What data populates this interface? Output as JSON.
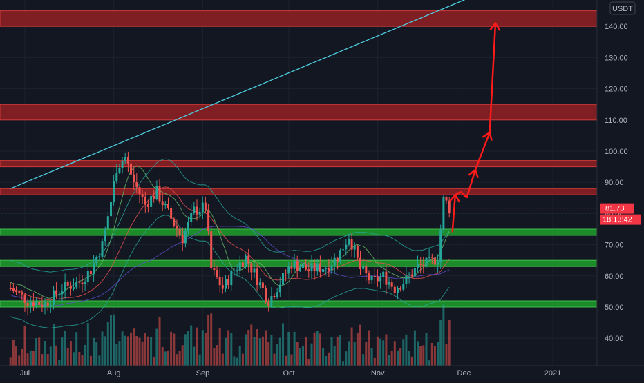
{
  "chart_data": {
    "type": "candlestick",
    "currency_label": "USDT",
    "y_ticks": [
      40,
      50,
      60,
      70,
      80,
      90,
      100,
      110,
      120,
      130,
      140
    ],
    "y_tick_labels": [
      "40.00",
      "50.00",
      "60.00",
      "70.00",
      "80.00",
      "90.00",
      "100.00",
      "110.00",
      "120.00",
      "130.00",
      "140.00"
    ],
    "ylim": [
      33,
      152
    ],
    "x_ticks": [
      {
        "label": "Jul",
        "date": "2020-07-01"
      },
      {
        "label": "Aug",
        "date": "2020-08-01"
      },
      {
        "label": "Sep",
        "date": "2020-09-01"
      },
      {
        "label": "Oct",
        "date": "2020-10-01"
      },
      {
        "label": "Nov",
        "date": "2020-11-01"
      },
      {
        "label": "Dec",
        "date": "2020-12-01"
      },
      {
        "label": "2021",
        "date": "2021-01-01"
      }
    ],
    "last_price": {
      "value": 81.73,
      "label": "81.73",
      "countdown": "18:13:42"
    },
    "price_path": [
      [
        "2020-06-26",
        56
      ],
      [
        "2020-07-02",
        52
      ],
      [
        "2020-07-08",
        51
      ],
      [
        "2020-07-14",
        56
      ],
      [
        "2020-07-20",
        58
      ],
      [
        "2020-07-24",
        62
      ],
      [
        "2020-07-28",
        70
      ],
      [
        "2020-07-31",
        84
      ],
      [
        "2020-08-02",
        95
      ],
      [
        "2020-08-05",
        98
      ],
      [
        "2020-08-08",
        90
      ],
      [
        "2020-08-12",
        83
      ],
      [
        "2020-08-16",
        87
      ],
      [
        "2020-08-20",
        80
      ],
      [
        "2020-08-25",
        72
      ],
      [
        "2020-08-29",
        81
      ],
      [
        "2020-09-02",
        82
      ],
      [
        "2020-09-04",
        62
      ],
      [
        "2020-09-08",
        56
      ],
      [
        "2020-09-12",
        62
      ],
      [
        "2020-09-16",
        66
      ],
      [
        "2020-09-20",
        59
      ],
      [
        "2020-09-24",
        52
      ],
      [
        "2020-09-28",
        58
      ],
      [
        "2020-10-02",
        64
      ],
      [
        "2020-10-08",
        62
      ],
      [
        "2020-10-14",
        63
      ],
      [
        "2020-10-18",
        66
      ],
      [
        "2020-10-22",
        73
      ],
      [
        "2020-10-26",
        62
      ],
      [
        "2020-10-30",
        58
      ],
      [
        "2020-11-03",
        60
      ],
      [
        "2020-11-07",
        56
      ],
      [
        "2020-11-11",
        59
      ],
      [
        "2020-11-15",
        63
      ],
      [
        "2020-11-19",
        64
      ],
      [
        "2020-11-22",
        66
      ],
      [
        "2020-11-24",
        85
      ],
      [
        "2020-11-26",
        81.7
      ]
    ],
    "resistance_zones": [
      {
        "low": 140,
        "high": 145
      },
      {
        "low": 110,
        "high": 115
      },
      {
        "low": 95,
        "high": 97
      },
      {
        "low": 86,
        "high": 88
      }
    ],
    "support_zones": [
      {
        "low": 73,
        "high": 75
      },
      {
        "low": 63,
        "high": 65
      },
      {
        "low": 50,
        "high": 52
      }
    ],
    "trendline": {
      "start": [
        "2020-06-26",
        88
      ],
      "end": [
        "2020-12-13",
        153
      ]
    },
    "projection_path": [
      [
        "2020-11-27",
        74
      ],
      [
        "2020-11-28",
        86
      ],
      [
        "2020-11-30",
        87
      ],
      [
        "2020-12-02",
        85
      ],
      [
        "2020-12-05",
        94
      ],
      [
        "2020-12-10",
        106
      ],
      [
        "2020-12-12",
        141
      ]
    ],
    "colors": {
      "background": "#131722",
      "bull": "#26a69a",
      "bear": "#ef5350",
      "resistance": "#7f1f24",
      "support": "#1d8b2a",
      "trendline": "#4dd0e1",
      "projection": "#ff1a1a",
      "price_label": "#f23645"
    }
  }
}
